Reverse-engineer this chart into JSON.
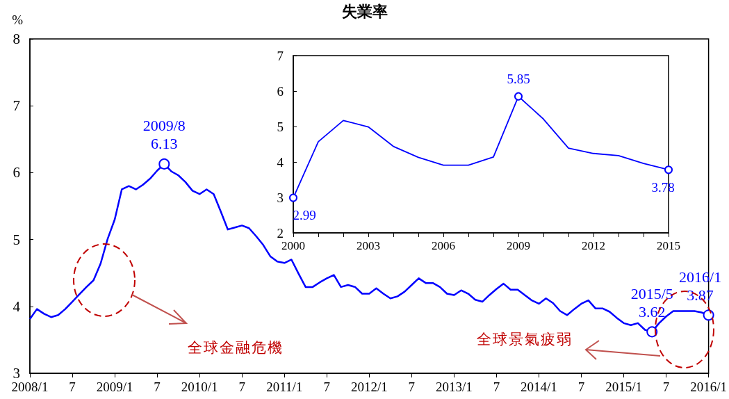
{
  "chart_data": [
    {
      "type": "line",
      "title": "失業率",
      "ylabel": "%",
      "color": "#0000ff",
      "categories": [
        "2008/1",
        null,
        null,
        null,
        null,
        null,
        "7",
        null,
        null,
        null,
        null,
        null,
        "2009/1",
        null,
        null,
        null,
        null,
        null,
        "7",
        null,
        null,
        null,
        null,
        null,
        "2010/1",
        null,
        null,
        null,
        null,
        null,
        "7",
        null,
        null,
        null,
        null,
        null,
        "2011/1",
        null,
        null,
        null,
        null,
        null,
        "7",
        null,
        null,
        null,
        null,
        null,
        "2012/1",
        null,
        null,
        null,
        null,
        null,
        "7",
        null,
        null,
        null,
        null,
        null,
        "2013/1",
        null,
        null,
        null,
        null,
        null,
        "7",
        null,
        null,
        null,
        null,
        null,
        "2014/1",
        null,
        null,
        null,
        null,
        null,
        "7",
        null,
        null,
        null,
        null,
        null,
        "2015/1",
        null,
        null,
        null,
        null,
        null,
        "7",
        null,
        null,
        null,
        null,
        null,
        "2016/1"
      ],
      "values": [
        3.81,
        3.96,
        3.89,
        3.84,
        3.87,
        3.96,
        4.07,
        4.18,
        4.29,
        4.39,
        4.64,
        5.01,
        5.3,
        5.75,
        5.8,
        5.75,
        5.82,
        5.91,
        6.03,
        6.13,
        6.02,
        5.96,
        5.86,
        5.73,
        5.68,
        5.75,
        5.68,
        5.42,
        5.15,
        5.18,
        5.21,
        5.17,
        5.05,
        4.92,
        4.75,
        4.67,
        4.65,
        4.7,
        4.49,
        4.29,
        4.29,
        4.36,
        4.42,
        4.47,
        4.29,
        4.32,
        4.29,
        4.19,
        4.19,
        4.27,
        4.19,
        4.12,
        4.15,
        4.22,
        4.32,
        4.42,
        4.35,
        4.35,
        4.29,
        4.19,
        4.17,
        4.24,
        4.19,
        4.1,
        4.07,
        4.17,
        4.26,
        4.34,
        4.25,
        4.25,
        4.17,
        4.09,
        4.04,
        4.12,
        4.05,
        3.93,
        3.87,
        3.96,
        4.04,
        4.09,
        3.97,
        3.97,
        3.92,
        3.83,
        3.75,
        3.72,
        3.75,
        3.65,
        3.62,
        3.75,
        3.85,
        3.93,
        3.93,
        3.93,
        3.93,
        3.91,
        3.87
      ],
      "value_labels": [
        null,
        null,
        null,
        null,
        null,
        null,
        null,
        null,
        null,
        null,
        null,
        null,
        null,
        null,
        null,
        null,
        null,
        null,
        null,
        "2009/8\n6.13",
        null,
        null,
        null,
        null,
        null,
        null,
        null,
        null,
        null,
        null,
        null,
        null,
        null,
        null,
        null,
        null,
        null,
        null,
        null,
        null,
        null,
        null,
        null,
        null,
        null,
        null,
        null,
        null,
        null,
        null,
        null,
        null,
        null,
        null,
        null,
        null,
        null,
        null,
        null,
        null,
        null,
        null,
        null,
        null,
        null,
        null,
        null,
        null,
        null,
        null,
        null,
        null,
        null,
        null,
        null,
        null,
        null,
        null,
        null,
        null,
        null,
        null,
        null,
        null,
        null,
        null,
        null,
        null,
        "2015/5\n3.62",
        null,
        null,
        null,
        null,
        null,
        null,
        null,
        "2016/1\n3.87"
      ],
      "ylim": [
        3,
        8
      ],
      "yticks": [
        3,
        4,
        5,
        6,
        7,
        8
      ],
      "grid": false,
      "annotations": [
        "全球金融危機",
        "全球景氣疲弱"
      ]
    },
    {
      "type": "line",
      "color": "#0000ff",
      "categories": [
        "2000",
        null,
        null,
        "2003",
        null,
        null,
        "2006",
        null,
        null,
        "2009",
        null,
        null,
        "2012",
        null,
        null,
        "2015"
      ],
      "values": [
        2.99,
        4.57,
        5.17,
        4.99,
        4.44,
        4.13,
        3.91,
        3.91,
        4.14,
        5.85,
        5.21,
        4.39,
        4.24,
        4.18,
        3.96,
        3.78
      ],
      "value_labels": [
        "2.99",
        null,
        null,
        null,
        null,
        null,
        null,
        null,
        null,
        "5.85",
        null,
        null,
        null,
        null,
        null,
        "3.78"
      ],
      "ylim": [
        2,
        7
      ],
      "yticks": [
        2,
        3,
        4,
        5,
        6,
        7
      ],
      "grid": false
    }
  ]
}
